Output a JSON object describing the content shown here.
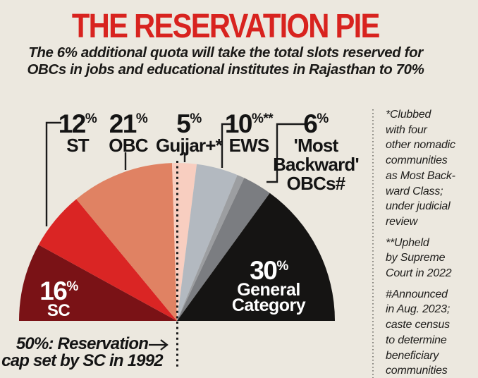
{
  "header": {
    "title": "THE RESERVATION PIE",
    "subtitle": "The 6% additional quota will take the total slots reserved for\nOBCs in jobs and educational institutes in Rajasthan to 70%"
  },
  "palette": {
    "background": "#ece8df",
    "title_red": "#d8231f",
    "text": "#161514",
    "leader_line": "#1a1a1a"
  },
  "chart_data": {
    "type": "pie",
    "shape": "semicircle",
    "start": "left",
    "direction": "clockwise",
    "unit": "%",
    "total": 100,
    "title": "THE RESERVATION PIE",
    "segments": [
      {
        "label": "SC",
        "value": 16,
        "color": "#7a1216",
        "text_color": "#ffffff",
        "display": {
          "num": "16",
          "sup": "%",
          "lines": [
            "SC"
          ]
        }
      },
      {
        "label": "ST",
        "value": 12,
        "color": "#da2524",
        "display": {
          "num": "12",
          "sup": "%",
          "lines": [
            "ST"
          ]
        }
      },
      {
        "label": "OBC",
        "value": 21,
        "color": "#e08263",
        "display": {
          "num": "21",
          "sup": "%",
          "lines": [
            "OBC"
          ]
        }
      },
      {
        "label": "Gujjar+",
        "value": 5,
        "color": "#f8cec0",
        "display": {
          "num": "5",
          "sup": "%",
          "lines": [
            "Gujjar+*"
          ]
        }
      },
      {
        "label": "EWS",
        "value": 10,
        "color": "#b3b9c0",
        "bands": [
          {
            "fraction": 0.85,
            "color": "#b3b9c0"
          },
          {
            "fraction": 0.15,
            "color": "#9c9ea1"
          }
        ],
        "display": {
          "num": "10",
          "sup": "%**",
          "lines": [
            "EWS"
          ]
        }
      },
      {
        "label": "'Most Backward' OBCs",
        "value": 6,
        "color": "#7b7d81",
        "display": {
          "num": "6",
          "sup": "%",
          "lines": [
            "'Most",
            "Backward'",
            "OBCs#"
          ]
        }
      },
      {
        "label": "General Category",
        "value": 30,
        "color": "#151413",
        "text_color": "#ffffff",
        "display": {
          "num": "30",
          "sup": "%",
          "lines": [
            "General",
            "Category"
          ]
        }
      }
    ],
    "annotation": {
      "line1": "50%: Reservation",
      "line2": "cap set by SC in 1992",
      "arrow": "→",
      "marker": "dotted line at 50% position"
    }
  },
  "footnotes": [
    {
      "text": "*Clubbed\nwith four\nother nomadic\ncommunities\nas Most Back-\nward Class;\nunder judicial\nreview"
    },
    {
      "text": "**Upheld\nby Supreme\nCourt in 2022"
    },
    {
      "text": "#Announced\nin Aug. 2023;\ncaste census\nto determine\nbeneficiary\ncommunities"
    }
  ]
}
